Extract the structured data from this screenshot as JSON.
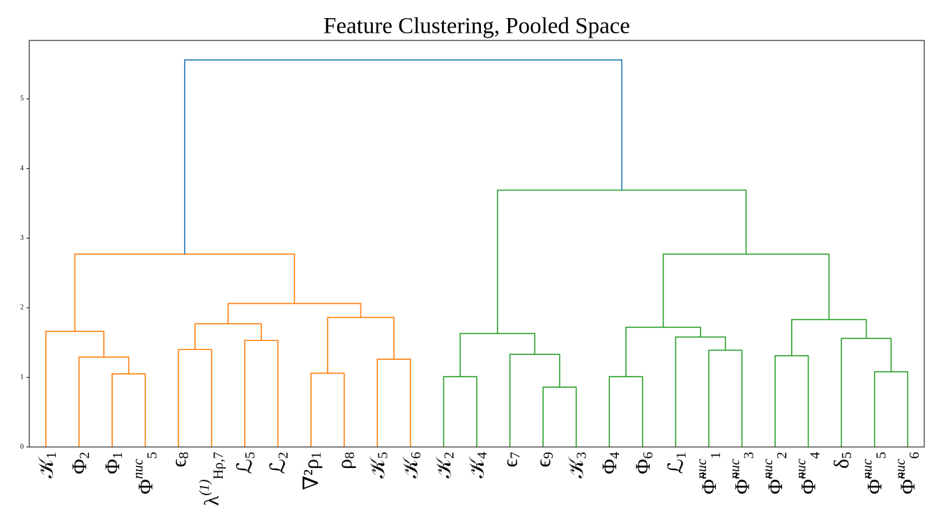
{
  "chart_data": {
    "type": "dendrogram",
    "title": "Feature Clustering, Pooled Space",
    "labels": [
      {
        "base": "𝒦",
        "sub": "1"
      },
      {
        "base": "Φ",
        "sub": "2"
      },
      {
        "base": "Φ",
        "sub": "1"
      },
      {
        "base": "Φ",
        "sub": "5",
        "sup": "nuc"
      },
      {
        "base": "ϵ",
        "sub": "8"
      },
      {
        "base": "λ",
        "sup": "(1)",
        "sub": "Hρ,7"
      },
      {
        "base": "ℒ",
        "sub": "5"
      },
      {
        "base": "ℒ",
        "sub": "2"
      },
      {
        "base": "∇²ρ",
        "sub": "1"
      },
      {
        "base": "ρ",
        "sub": "8"
      },
      {
        "base": "𝒦",
        "sub": "5"
      },
      {
        "base": "𝒦",
        "sub": "6"
      },
      {
        "base": "𝒦",
        "sub": "2"
      },
      {
        "base": "𝒦",
        "sub": "4"
      },
      {
        "base": "ϵ",
        "sub": "7"
      },
      {
        "base": "ϵ",
        "sub": "9"
      },
      {
        "base": "𝒦",
        "sub": "3"
      },
      {
        "base": "Φ",
        "sub": "4"
      },
      {
        "base": "Φ",
        "sub": "6"
      },
      {
        "base": "ℒ",
        "sub": "1"
      },
      {
        "base": "Φ̃",
        "sub": "1",
        "sup": "nuc"
      },
      {
        "base": "Φ̃",
        "sub": "3",
        "sup": "nuc"
      },
      {
        "base": "Φ̃",
        "sub": "2",
        "sup": "nuc"
      },
      {
        "base": "Φ̃",
        "sub": "4",
        "sup": "nuc"
      },
      {
        "base": "δ",
        "sub": "5"
      },
      {
        "base": "Φ̃",
        "sub": "5",
        "sup": "nuc"
      },
      {
        "base": "Φ̃",
        "sub": "6",
        "sup": "nuc"
      }
    ],
    "links": [
      [
        15,
        16,
        0.86
      ],
      [
        12,
        13,
        1.01
      ],
      [
        17,
        18,
        1.01
      ],
      [
        2,
        3,
        1.05
      ],
      [
        8,
        9,
        1.06
      ],
      [
        25,
        26,
        1.08
      ],
      [
        10,
        11,
        1.26
      ],
      [
        1,
        30,
        1.29
      ],
      [
        22,
        23,
        1.31
      ],
      [
        14,
        27,
        1.33
      ],
      [
        20,
        21,
        1.39
      ],
      [
        4,
        5,
        1.4
      ],
      [
        6,
        7,
        1.53
      ],
      [
        24,
        32,
        1.56
      ],
      [
        19,
        37,
        1.58
      ],
      [
        28,
        36,
        1.63
      ],
      [
        0,
        34,
        1.66
      ],
      [
        29,
        41,
        1.72
      ],
      [
        38,
        39,
        1.77
      ],
      [
        35,
        40,
        1.83
      ],
      [
        31,
        33,
        1.86
      ],
      [
        45,
        47,
        2.06
      ],
      [
        43,
        48,
        2.77
      ],
      [
        44,
        46,
        2.77
      ],
      [
        42,
        50,
        3.69
      ],
      [
        49,
        51,
        5.56
      ]
    ],
    "link_colors": [
      "#2ca02c",
      "#2ca02c",
      "#2ca02c",
      "#ff7f0e",
      "#ff7f0e",
      "#2ca02c",
      "#ff7f0e",
      "#ff7f0e",
      "#2ca02c",
      "#2ca02c",
      "#2ca02c",
      "#ff7f0e",
      "#ff7f0e",
      "#2ca02c",
      "#2ca02c",
      "#2ca02c",
      "#ff7f0e",
      "#2ca02c",
      "#ff7f0e",
      "#2ca02c",
      "#ff7f0e",
      "#ff7f0e",
      "#ff7f0e",
      "#2ca02c",
      "#2ca02c",
      "#1f77b4"
    ],
    "ylim": [
      0,
      5.84
    ],
    "yticks": [
      0,
      1,
      2,
      3,
      4,
      5
    ]
  }
}
